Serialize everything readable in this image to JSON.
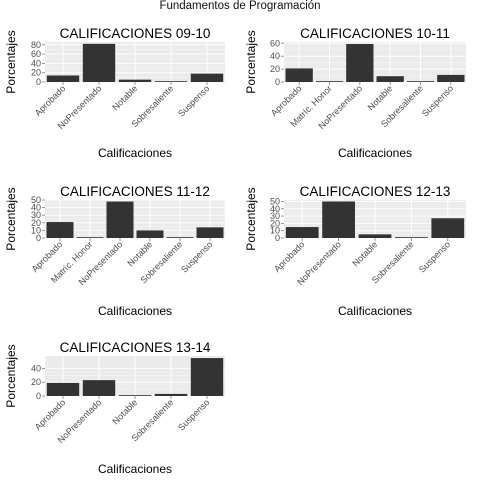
{
  "figure": {
    "title": "Fundamentos de Programación"
  },
  "colors": {
    "bar": "#333333",
    "panel_bg": "#ebebeb",
    "grid_major": "#ffffff",
    "grid_minor": "#f5f5f5",
    "tick_text": "#4d4d4d"
  },
  "chart_data": [
    {
      "type": "bar",
      "title": "CALIFICACIONES 09-10",
      "xlabel": "Calificaciones",
      "ylabel": "Porcentajes",
      "categories": [
        "Aprobado",
        "NoPresentado",
        "Notable",
        "Sobresaliente",
        "Suspenso"
      ],
      "values": [
        14,
        82,
        5,
        1,
        18
      ],
      "yticks": [
        0,
        20,
        40,
        60,
        80
      ],
      "ylim": [
        0,
        86
      ],
      "grid": true
    },
    {
      "type": "bar",
      "title": "CALIFICACIONES 10-11",
      "xlabel": "Calificaciones",
      "ylabel": "Porcentajes",
      "categories": [
        "Aprobado",
        "Matríc. Honor",
        "NoPresentado",
        "Notable",
        "Sobresaliente",
        "Suspenso"
      ],
      "values": [
        21,
        1,
        59,
        9,
        1,
        11
      ],
      "yticks": [
        0,
        20,
        40,
        60
      ],
      "ylim": [
        0,
        62
      ],
      "grid": true
    },
    {
      "type": "bar",
      "title": "CALIFICACIONES 11-12",
      "xlabel": "Calificaciones",
      "ylabel": "Porcentajes",
      "categories": [
        "Aprobado",
        "Matríc. Honor",
        "NoPresentado",
        "Notable",
        "Sobresaliente",
        "Suspenso"
      ],
      "values": [
        21,
        1,
        48,
        10,
        1,
        14
      ],
      "yticks": [
        0,
        10,
        20,
        30,
        40,
        50
      ],
      "ylim": [
        0,
        50
      ],
      "grid": true
    },
    {
      "type": "bar",
      "title": "CALIFICACIONES 12-13",
      "xlabel": "Calificaciones",
      "ylabel": "Porcentajes",
      "categories": [
        "Aprobado",
        "NoPresentado",
        "Notable",
        "Sobresaliente",
        "Suspenso"
      ],
      "values": [
        15,
        50,
        5,
        1,
        27
      ],
      "yticks": [
        0,
        10,
        20,
        30,
        40,
        50
      ],
      "ylim": [
        0,
        52
      ],
      "grid": true
    },
    {
      "type": "bar",
      "title": "CALIFICACIONES 13-14",
      "xlabel": "Calificaciones",
      "ylabel": "Porcentajes",
      "categories": [
        "Aprobado",
        "NoPresentado",
        "Notable",
        "Sobresaliente",
        "Suspenso"
      ],
      "values": [
        19,
        23,
        1,
        3,
        55
      ],
      "yticks": [
        0,
        20,
        40
      ],
      "ylim": [
        0,
        58
      ],
      "grid": true
    }
  ]
}
